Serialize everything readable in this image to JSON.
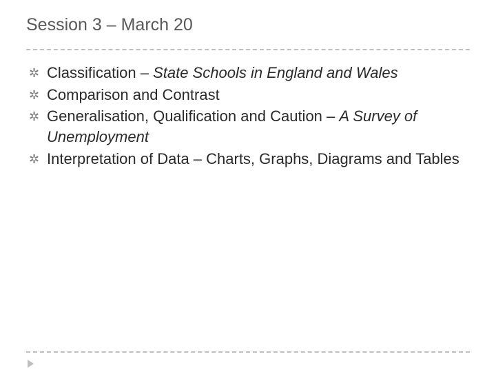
{
  "slide": {
    "title": "Session 3 – March 20",
    "title_color": "#595959",
    "title_fontsize": 25,
    "divider_color": "#bfbfbf",
    "background_color": "#ffffff",
    "bullet_marker": "✲",
    "bullet_marker_color": "#808080",
    "body_fontsize": 22,
    "body_color": "#2a2a2a",
    "items": [
      {
        "prefix": "Classification – ",
        "italic": "State Schools in England and Wales",
        "suffix": ""
      },
      {
        "prefix": "Comparison and Contrast",
        "italic": "",
        "suffix": ""
      },
      {
        "prefix": "Generalisation, Qualification and Caution – ",
        "italic": "A Survey of Unemployment",
        "suffix": ""
      },
      {
        "prefix": "Interpretation of Data – Charts, Graphs, Diagrams and Tables",
        "italic": "",
        "suffix": ""
      }
    ]
  }
}
